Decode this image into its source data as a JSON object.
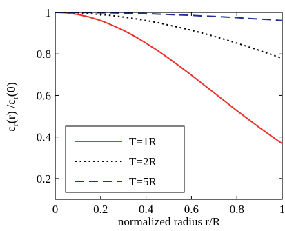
{
  "chart_data": {
    "type": "line",
    "xlabel": "normalized radius r/R",
    "ylabel": {
      "prefix": "ε",
      "sub1": "r",
      "middle": "(r) /ε",
      "sub2": "r",
      "suffix": "(0)"
    },
    "xlim": [
      0,
      1
    ],
    "ylim": [
      0.1,
      1
    ],
    "xticks": [
      0,
      0.2,
      0.4,
      0.6,
      0.8,
      1
    ],
    "xtick_labels": [
      "0",
      "0.2",
      "0.4",
      "0.6",
      "0.8",
      "1"
    ],
    "yticks": [
      0.2,
      0.4,
      0.6,
      0.8,
      1
    ],
    "ytick_labels": [
      "0.2",
      "0.4",
      "0.6",
      "0.8",
      "1"
    ],
    "grid": false,
    "legend_position": "bottom-left",
    "x": [
      0,
      0.05,
      0.1,
      0.15,
      0.2,
      0.25,
      0.3,
      0.35,
      0.4,
      0.45,
      0.5,
      0.55,
      0.6,
      0.65,
      0.7,
      0.75,
      0.8,
      0.85,
      0.9,
      0.95,
      1
    ],
    "series": [
      {
        "name": "T=1R",
        "color": "#e8312a",
        "dash": "solid",
        "values": [
          1.0,
          0.998,
          0.99,
          0.978,
          0.961,
          0.939,
          0.914,
          0.885,
          0.852,
          0.817,
          0.779,
          0.739,
          0.698,
          0.655,
          0.613,
          0.57,
          0.527,
          0.486,
          0.445,
          0.406,
          0.368
        ]
      },
      {
        "name": "T=2R",
        "color": "#000000",
        "dash": "dotted",
        "values": [
          1.0,
          1.0,
          0.998,
          0.994,
          0.99,
          0.985,
          0.978,
          0.97,
          0.961,
          0.951,
          0.939,
          0.927,
          0.914,
          0.9,
          0.885,
          0.869,
          0.852,
          0.835,
          0.817,
          0.798,
          0.779
        ]
      },
      {
        "name": "T=5R",
        "color": "#1f2f9a",
        "dash": "dashed",
        "values": [
          1.0,
          1.0,
          1.0,
          0.999,
          0.998,
          0.998,
          0.996,
          0.995,
          0.994,
          0.992,
          0.99,
          0.988,
          0.986,
          0.983,
          0.981,
          0.978,
          0.975,
          0.971,
          0.968,
          0.965,
          0.961
        ]
      }
    ]
  }
}
